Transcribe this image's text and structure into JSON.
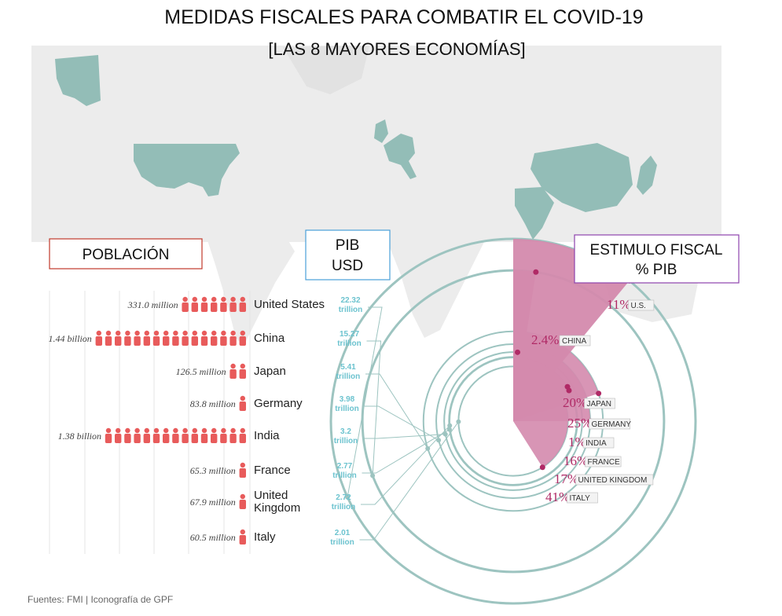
{
  "title": "MEDIDAS FISCALES PARA COMBATIR EL COVID-19",
  "subtitle": "[LAS 8 MAYORES ECONOMÍAS]",
  "labels": {
    "population": "POBLACIÓN",
    "gdp_line1": "PIB",
    "gdp_line2": "USD",
    "stimulus_line1": "ESTIMULO FISCAL",
    "stimulus_line2": "% PIB"
  },
  "source": "Fuentes: FMI | Iconografía de GPF",
  "colors": {
    "map": "#93bdb7",
    "map_bg": "#ececec",
    "person": "#e85b5b",
    "ring": "#9dc4c0",
    "gdp_text": "#6cc3cf",
    "stimulus": "#d48aad",
    "stimulus_dot": "#b02a66",
    "population_box": "#c0392b",
    "gdp_box": "#4a9fd8",
    "stimulus_box": "#8e44ad"
  },
  "chart_data": {
    "type": "bar",
    "categories": [
      "United States",
      "China",
      "Japan",
      "Germany",
      "India",
      "France",
      "United Kingdom",
      "Italy"
    ],
    "series": [
      {
        "name": "POBLACIÓN",
        "values": [
          331.0,
          1440,
          126.5,
          83.8,
          1380,
          65.3,
          67.9,
          60.5
        ],
        "unit": "million"
      },
      {
        "name": "PIB USD",
        "values": [
          22.32,
          15.27,
          5.41,
          3.98,
          3.2,
          2.77,
          2.72,
          2.01
        ],
        "unit": "trillion"
      },
      {
        "name": "ESTIMULO FISCAL % PIB",
        "values": [
          11,
          2.4,
          20,
          25,
          1,
          16,
          17,
          41
        ],
        "unit": "%"
      }
    ],
    "population_labels": [
      "331.0 million",
      "1.44 billion",
      "126.5 million",
      "83.8 million",
      "1.38 billion",
      "65.3 million",
      "67.9 million",
      "60.5 million"
    ],
    "population_icons": [
      7,
      16,
      2,
      1,
      15,
      1,
      1,
      1
    ],
    "gdp_labels": [
      [
        "22.32",
        "trillion"
      ],
      [
        "15.27",
        "trillion"
      ],
      [
        "5.41",
        "trillion"
      ],
      [
        "3.98",
        "trillion"
      ],
      [
        "3.2",
        "trillion"
      ],
      [
        "2.77",
        "trillion"
      ],
      [
        "2.72",
        "trillion"
      ],
      [
        "2.01",
        "trillion"
      ]
    ],
    "country_labels": [
      [
        "United States"
      ],
      [
        "China"
      ],
      [
        "Japan"
      ],
      [
        "Germany"
      ],
      [
        "India"
      ],
      [
        "France"
      ],
      [
        "United",
        "Kingdom"
      ],
      [
        "Italy"
      ]
    ],
    "stimulus_labels": [
      [
        "11%",
        "U.S."
      ],
      [
        "2.4%",
        "CHINA"
      ],
      [
        "20%",
        "JAPAN"
      ],
      [
        "25%",
        "GERMANY"
      ],
      [
        "1%",
        "INDIA"
      ],
      [
        "16%",
        "FRANCE"
      ],
      [
        "17%",
        "UNITED KINGDOM"
      ],
      [
        "41%",
        "ITALY"
      ]
    ]
  }
}
